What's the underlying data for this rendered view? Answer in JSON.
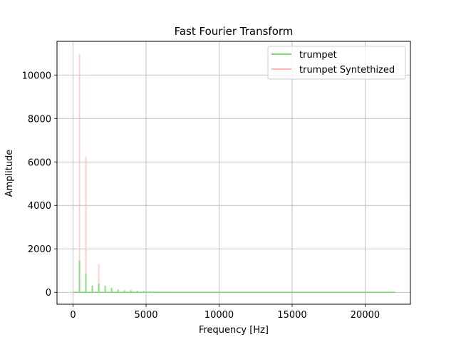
{
  "chart_data": {
    "type": "line",
    "title": "Fast Fourier Transform",
    "xlabel": "Frequency [Hz]",
    "ylabel": "Amplitude",
    "xlim": [
      -1100,
      23100
    ],
    "ylim": [
      -550,
      11550
    ],
    "xticks": [
      0,
      5000,
      10000,
      15000,
      20000
    ],
    "yticks": [
      0,
      2000,
      4000,
      6000,
      8000,
      10000
    ],
    "grid": true,
    "legend_position": "top-right",
    "series": [
      {
        "name": "trumpet",
        "color": "#77dd77",
        "peaks": [
          {
            "x": 440,
            "y": 1450
          },
          {
            "x": 880,
            "y": 850
          },
          {
            "x": 1320,
            "y": 300
          },
          {
            "x": 1760,
            "y": 400
          },
          {
            "x": 2200,
            "y": 300
          },
          {
            "x": 2640,
            "y": 200
          },
          {
            "x": 3080,
            "y": 130
          },
          {
            "x": 3520,
            "y": 90
          },
          {
            "x": 3960,
            "y": 100
          },
          {
            "x": 4400,
            "y": 70
          },
          {
            "x": 4840,
            "y": 60
          },
          {
            "x": 5280,
            "y": 40
          },
          {
            "x": 5720,
            "y": 30
          },
          {
            "x": 6160,
            "y": 25
          },
          {
            "x": 6600,
            "y": 20
          }
        ]
      },
      {
        "name": "trumpet Syntethized",
        "color": "#ffb3ab",
        "peaks": [
          {
            "x": 440,
            "y": 10950
          },
          {
            "x": 880,
            "y": 6250
          },
          {
            "x": 1320,
            "y": 320
          },
          {
            "x": 1760,
            "y": 1300
          }
        ]
      }
    ]
  }
}
